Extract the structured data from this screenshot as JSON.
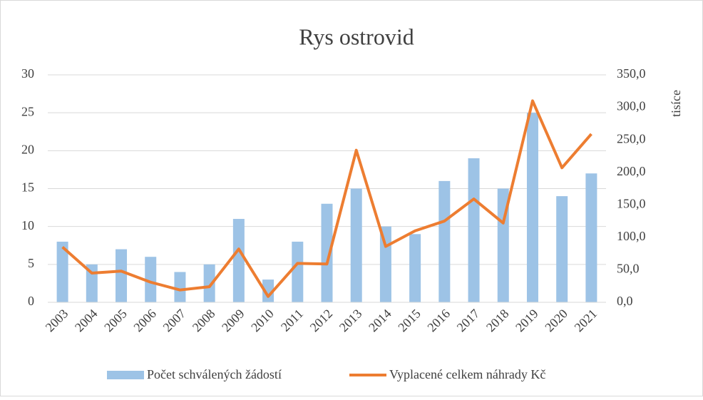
{
  "chart_data": {
    "type": "bar-line",
    "title": "Rys ostrovid",
    "y2_label": "tisíce",
    "categories": [
      "2003",
      "2004",
      "2005",
      "2006",
      "2007",
      "2008",
      "2009",
      "2010",
      "2011",
      "2012",
      "2013",
      "2014",
      "2015",
      "2016",
      "2017",
      "2018",
      "2019",
      "2020",
      "2021"
    ],
    "series": [
      {
        "name": "Počet schválených žádostí",
        "color": "#9dc3e6",
        "type": "bar",
        "values": [
          8,
          5,
          7,
          6,
          4,
          5,
          11,
          3,
          8,
          13,
          15,
          10,
          9,
          16,
          19,
          15,
          25,
          14,
          17
        ]
      },
      {
        "name": "Vyplacené celkem náhrady Kč",
        "color": "#ed7d31",
        "type": "line",
        "axis": "y2",
        "values": [
          85,
          45,
          48,
          31,
          19,
          24,
          82,
          9,
          60,
          59,
          234,
          86,
          110,
          125,
          159,
          122,
          310,
          207,
          259
        ]
      }
    ],
    "ylim": [
      0,
      30
    ],
    "yticks": [
      0,
      5,
      10,
      15,
      20,
      25,
      30
    ],
    "y2lim": [
      0,
      350
    ],
    "y2ticks": [
      {
        "value": 0,
        "label": "0,0"
      },
      {
        "value": 50,
        "label": "50,0"
      },
      {
        "value": 100,
        "label": "100,0"
      },
      {
        "value": 150,
        "label": "150,0"
      },
      {
        "value": 200,
        "label": "200,0"
      },
      {
        "value": 250,
        "label": "250,0"
      },
      {
        "value": 300,
        "label": "300,0"
      },
      {
        "value": 350,
        "label": "350,0"
      }
    ],
    "grid": true
  }
}
